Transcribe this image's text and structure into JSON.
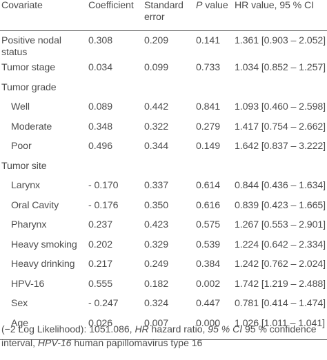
{
  "table": {
    "headers": {
      "covariate": "Covariate",
      "coefficient": "Coefficient",
      "standard_error_line1": "Standard",
      "standard_error_line2": "error",
      "p_value_italic": "P",
      "p_value_rest": " value",
      "hr": "HR value, 95 % CI"
    },
    "rows": [
      {
        "label_line1": "Positive nodal",
        "label_line2": "status",
        "coef": "0.308",
        "se": "0.209",
        "p": "0.141",
        "hr": "1.361 [0.903 – 2.052]"
      },
      {
        "label": "Tumor stage",
        "coef": "0.034",
        "se": "0.099",
        "p": "0.733",
        "hr": "1.034 [0.852 – 1.257]"
      },
      {
        "label": "Tumor grade",
        "coef": "",
        "se": "",
        "p": "",
        "hr": ""
      },
      {
        "label": "Well",
        "coef": "0.089",
        "se": "0.442",
        "p": "0.841",
        "hr": "1.093 [0.460 – 2.598]"
      },
      {
        "label": "Moderate",
        "coef": "0.348",
        "se": "0.322",
        "p": "0.279",
        "hr": "1.417 [0.754 – 2.662]"
      },
      {
        "label": "Poor",
        "coef": "0.496",
        "se": "0.344",
        "p": "0.149",
        "hr": "1.642 [0.837 – 3.222]"
      },
      {
        "label": "Tumor site",
        "coef": "",
        "se": "",
        "p": "",
        "hr": ""
      },
      {
        "label": "Larynx",
        "coef": "- 0.170",
        "se": "0.337",
        "p": "0.614",
        "hr": "0.844 [0.436 – 1.634]"
      },
      {
        "label": "Oral Cavity",
        "coef": "- 0.176",
        "se": "0.350",
        "p": "0.616",
        "hr": "0.839 [0.423 – 1.665]"
      },
      {
        "label": "Pharynx",
        "coef": "0.237",
        "se": "0.423",
        "p": "0.575",
        "hr": "1.267 [0.553 – 2.901]"
      },
      {
        "label": "Heavy smoking",
        "coef": "0.202",
        "se": "0.329",
        "p": "0.539",
        "hr": "1.224 [0.642 – 2.334]"
      },
      {
        "label": "Heavy drinking",
        "coef": "0.217",
        "se": "0.249",
        "p": "0.384",
        "hr": "1.242 [0.762 – 2.024]"
      },
      {
        "label": "HPV-16",
        "coef": "0.555",
        "se": "0.182",
        "p": "0.002",
        "hr": "1.742 [1.219 – 2.488]"
      },
      {
        "label": "Sex",
        "coef": "- 0.247",
        "se": "0.324",
        "p": "0.447",
        "hr": "0.781 [0.414 – 1.474]"
      },
      {
        "label": "Age",
        "coef": "0.026",
        "se": "0.007",
        "p": "0.000",
        "hr": "1.026 [1.011 – 1.041]"
      }
    ]
  },
  "footnote": {
    "part1": "(−2 Log Likelihood): 1051.086, ",
    "hr_abbr": "HR",
    "part2": " hazard ratio, ",
    "ci_abbr": "95 % CI",
    "part3": " 95 % confidence interval, ",
    "hpv_abbr": "HPV-16",
    "part4": " human papillomavirus type 16"
  }
}
